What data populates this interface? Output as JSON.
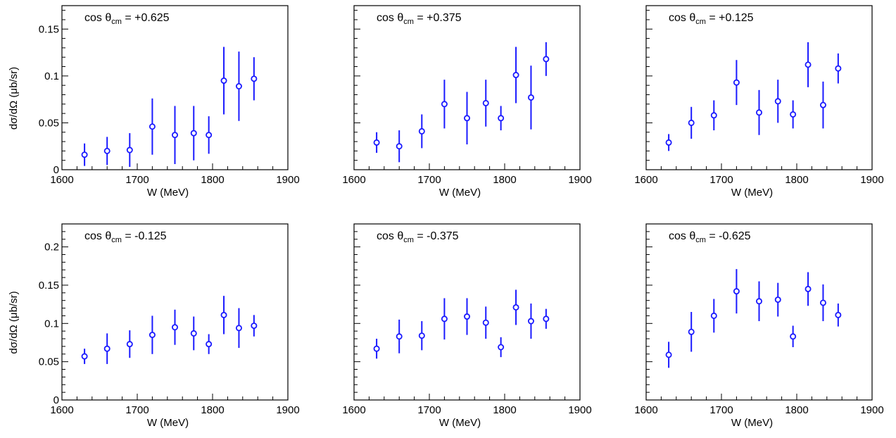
{
  "marker_color": "#1a1aff",
  "chart_data": [
    {
      "type": "scatter",
      "annotation": "cos θcm = +0.625",
      "annotation_parts": {
        "prefix": "cos θ",
        "sub": "cm",
        "suffix": " = +0.625"
      },
      "xlabel": "W (MeV)",
      "ylabel": "dσ/dΩ (μb/sr)",
      "xlim": [
        1600,
        1900
      ],
      "ylim": [
        0,
        0.175
      ],
      "xticks": [
        1600,
        1700,
        1800,
        1900
      ],
      "yticks": [
        0,
        0.05,
        0.1,
        0.15
      ],
      "ytick_labels": [
        "0",
        "0.05",
        "0.1",
        "0.15"
      ],
      "show_ytick_labels": true,
      "grid": false,
      "points": [
        {
          "x": 1630,
          "y": 0.016,
          "err": 0.012
        },
        {
          "x": 1660,
          "y": 0.02,
          "err": 0.015
        },
        {
          "x": 1690,
          "y": 0.021,
          "err": 0.018
        },
        {
          "x": 1720,
          "y": 0.046,
          "err": 0.03
        },
        {
          "x": 1750,
          "y": 0.037,
          "err": 0.031
        },
        {
          "x": 1775,
          "y": 0.039,
          "err": 0.029
        },
        {
          "x": 1795,
          "y": 0.037,
          "err": 0.02
        },
        {
          "x": 1815,
          "y": 0.095,
          "err": 0.036
        },
        {
          "x": 1835,
          "y": 0.089,
          "err": 0.037
        },
        {
          "x": 1855,
          "y": 0.097,
          "err": 0.023
        }
      ]
    },
    {
      "type": "scatter",
      "annotation": "cos θcm = +0.375",
      "annotation_parts": {
        "prefix": "cos θ",
        "sub": "cm",
        "suffix": " = +0.375"
      },
      "xlabel": "W (MeV)",
      "ylabel": "",
      "xlim": [
        1600,
        1900
      ],
      "ylim": [
        0,
        0.175
      ],
      "xticks": [
        1600,
        1700,
        1800,
        1900
      ],
      "yticks": [
        0,
        0.05,
        0.1,
        0.15
      ],
      "ytick_labels": [
        "",
        "",
        "",
        ""
      ],
      "show_ytick_labels": false,
      "grid": false,
      "points": [
        {
          "x": 1630,
          "y": 0.029,
          "err": 0.011
        },
        {
          "x": 1660,
          "y": 0.025,
          "err": 0.017
        },
        {
          "x": 1690,
          "y": 0.041,
          "err": 0.018
        },
        {
          "x": 1720,
          "y": 0.07,
          "err": 0.026
        },
        {
          "x": 1750,
          "y": 0.055,
          "err": 0.028
        },
        {
          "x": 1775,
          "y": 0.071,
          "err": 0.025
        },
        {
          "x": 1795,
          "y": 0.055,
          "err": 0.013
        },
        {
          "x": 1815,
          "y": 0.101,
          "err": 0.03
        },
        {
          "x": 1835,
          "y": 0.077,
          "err": 0.034
        },
        {
          "x": 1855,
          "y": 0.118,
          "err": 0.018
        }
      ]
    },
    {
      "type": "scatter",
      "annotation": "cos θcm = +0.125",
      "annotation_parts": {
        "prefix": "cos θ",
        "sub": "cm",
        "suffix": " = +0.125"
      },
      "xlabel": "W (MeV)",
      "ylabel": "",
      "xlim": [
        1600,
        1900
      ],
      "ylim": [
        0,
        0.175
      ],
      "xticks": [
        1600,
        1700,
        1800,
        1900
      ],
      "yticks": [
        0,
        0.05,
        0.1,
        0.15
      ],
      "ytick_labels": [
        "",
        "",
        "",
        ""
      ],
      "show_ytick_labels": false,
      "grid": false,
      "points": [
        {
          "x": 1630,
          "y": 0.029,
          "err": 0.009
        },
        {
          "x": 1660,
          "y": 0.05,
          "err": 0.017
        },
        {
          "x": 1690,
          "y": 0.058,
          "err": 0.016
        },
        {
          "x": 1720,
          "y": 0.093,
          "err": 0.024
        },
        {
          "x": 1750,
          "y": 0.061,
          "err": 0.024
        },
        {
          "x": 1775,
          "y": 0.073,
          "err": 0.023
        },
        {
          "x": 1795,
          "y": 0.059,
          "err": 0.015
        },
        {
          "x": 1815,
          "y": 0.112,
          "err": 0.024
        },
        {
          "x": 1835,
          "y": 0.069,
          "err": 0.025
        },
        {
          "x": 1855,
          "y": 0.108,
          "err": 0.016
        }
      ]
    },
    {
      "type": "scatter",
      "annotation": "cos θcm = -0.125",
      "annotation_parts": {
        "prefix": "cos θ",
        "sub": "cm",
        "suffix": " = -0.125"
      },
      "xlabel": "W (MeV)",
      "ylabel": "dσ/dΩ (μb/sr)",
      "xlim": [
        1600,
        1900
      ],
      "ylim": [
        0,
        0.23
      ],
      "xticks": [
        1600,
        1700,
        1800,
        1900
      ],
      "yticks": [
        0,
        0.05,
        0.1,
        0.15,
        0.2
      ],
      "ytick_labels": [
        "0",
        "0.05",
        "0.1",
        "0.15",
        "0.2"
      ],
      "show_ytick_labels": true,
      "grid": false,
      "points": [
        {
          "x": 1630,
          "y": 0.057,
          "err": 0.01
        },
        {
          "x": 1660,
          "y": 0.067,
          "err": 0.02
        },
        {
          "x": 1690,
          "y": 0.073,
          "err": 0.018
        },
        {
          "x": 1720,
          "y": 0.085,
          "err": 0.025
        },
        {
          "x": 1750,
          "y": 0.095,
          "err": 0.023
        },
        {
          "x": 1775,
          "y": 0.087,
          "err": 0.022
        },
        {
          "x": 1795,
          "y": 0.073,
          "err": 0.013
        },
        {
          "x": 1815,
          "y": 0.111,
          "err": 0.025
        },
        {
          "x": 1835,
          "y": 0.094,
          "err": 0.026
        },
        {
          "x": 1855,
          "y": 0.097,
          "err": 0.014
        }
      ]
    },
    {
      "type": "scatter",
      "annotation": "cos θcm = -0.375",
      "annotation_parts": {
        "prefix": "cos θ",
        "sub": "cm",
        "suffix": " = -0.375"
      },
      "xlabel": "W (MeV)",
      "ylabel": "",
      "xlim": [
        1600,
        1900
      ],
      "ylim": [
        0,
        0.23
      ],
      "xticks": [
        1600,
        1700,
        1800,
        1900
      ],
      "yticks": [
        0,
        0.05,
        0.1,
        0.15,
        0.2
      ],
      "ytick_labels": [
        "",
        "",
        "",
        "",
        ""
      ],
      "show_ytick_labels": false,
      "grid": false,
      "points": [
        {
          "x": 1630,
          "y": 0.067,
          "err": 0.013
        },
        {
          "x": 1660,
          "y": 0.083,
          "err": 0.022
        },
        {
          "x": 1690,
          "y": 0.084,
          "err": 0.019
        },
        {
          "x": 1720,
          "y": 0.106,
          "err": 0.027
        },
        {
          "x": 1750,
          "y": 0.109,
          "err": 0.024
        },
        {
          "x": 1775,
          "y": 0.101,
          "err": 0.021
        },
        {
          "x": 1795,
          "y": 0.069,
          "err": 0.013
        },
        {
          "x": 1815,
          "y": 0.121,
          "err": 0.023
        },
        {
          "x": 1835,
          "y": 0.103,
          "err": 0.023
        },
        {
          "x": 1855,
          "y": 0.106,
          "err": 0.013
        }
      ]
    },
    {
      "type": "scatter",
      "annotation": "cos θcm = -0.625",
      "annotation_parts": {
        "prefix": "cos θ",
        "sub": "cm",
        "suffix": " = -0.625"
      },
      "xlabel": "W (MeV)",
      "ylabel": "",
      "xlim": [
        1600,
        1900
      ],
      "ylim": [
        0,
        0.23
      ],
      "xticks": [
        1600,
        1700,
        1800,
        1900
      ],
      "yticks": [
        0,
        0.05,
        0.1,
        0.15,
        0.2
      ],
      "ytick_labels": [
        "",
        "",
        "",
        "",
        ""
      ],
      "show_ytick_labels": false,
      "grid": false,
      "points": [
        {
          "x": 1630,
          "y": 0.059,
          "err": 0.017
        },
        {
          "x": 1660,
          "y": 0.089,
          "err": 0.026
        },
        {
          "x": 1690,
          "y": 0.11,
          "err": 0.022
        },
        {
          "x": 1720,
          "y": 0.142,
          "err": 0.029
        },
        {
          "x": 1750,
          "y": 0.129,
          "err": 0.026
        },
        {
          "x": 1775,
          "y": 0.131,
          "err": 0.022
        },
        {
          "x": 1795,
          "y": 0.083,
          "err": 0.014
        },
        {
          "x": 1815,
          "y": 0.145,
          "err": 0.022
        },
        {
          "x": 1835,
          "y": 0.127,
          "err": 0.024
        },
        {
          "x": 1855,
          "y": 0.111,
          "err": 0.015
        }
      ]
    }
  ]
}
